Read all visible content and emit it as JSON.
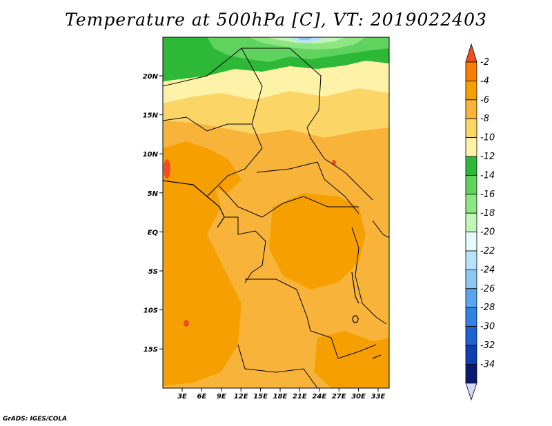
{
  "title": "Temperature at 500hPa [C], VT: 2019022403",
  "credit": "GrADS: IGES/COLA",
  "map": {
    "lat_labels": [
      "20N",
      "15N",
      "10N",
      "5N",
      "EQ",
      "5S",
      "10S",
      "15S"
    ],
    "lon_labels": [
      "3E",
      "6E",
      "9E",
      "12E",
      "15E",
      "18E",
      "21E",
      "24E",
      "27E",
      "30E",
      "33E"
    ]
  },
  "colorbar": {
    "labels": [
      "-2",
      "-4",
      "-6",
      "-8",
      "-10",
      "-12",
      "-14",
      "-16",
      "-18",
      "-20",
      "-22",
      "-24",
      "-26",
      "-28",
      "-30",
      "-32",
      "-34"
    ],
    "colors": [
      "#f04e1e",
      "#f77f00",
      "#f5a000",
      "#f8b43a",
      "#fbd667",
      "#fdf2a8",
      "#2eb838",
      "#5fd35e",
      "#8ee682",
      "#c2f5b8",
      "#e6fbfb",
      "#b6e2fb",
      "#8ec6f3",
      "#5aa6ee",
      "#3282e6",
      "#1c62d0",
      "#0e3fb0",
      "#0a1a70",
      "#d8d6f6"
    ]
  }
}
